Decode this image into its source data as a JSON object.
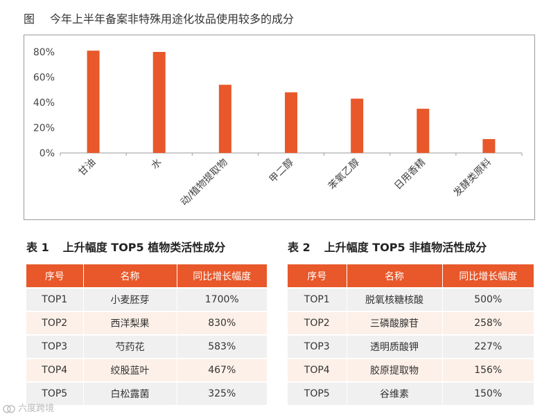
{
  "figure": {
    "label": "图",
    "title": "今年上半年备案非特殊用途化妆品使用较多的成分"
  },
  "chart_data": {
    "type": "bar",
    "title": "今年上半年备案非特殊用途化妆品使用较多的成分",
    "categories": [
      "甘油",
      "水",
      "动/植物提取物",
      "甲二醇",
      "苯氧乙醇",
      "日用香精",
      "发酵类原料"
    ],
    "values": [
      81,
      80,
      54,
      48,
      43,
      35,
      11
    ],
    "ylim": [
      0,
      80
    ],
    "yticks": [
      "0%",
      "20%",
      "40%",
      "60%",
      "80%"
    ],
    "ytick_values": [
      0,
      20,
      40,
      60,
      80
    ],
    "xlabel": "",
    "ylabel": "",
    "grid": false,
    "bar_color": "#e8582a"
  },
  "table1": {
    "number": "表 1",
    "title": "上升幅度 TOP5 植物类活性成分",
    "headers": [
      "序号",
      "名称",
      "同比增长幅度"
    ],
    "rows": [
      [
        "TOP1",
        "小麦胚芽",
        "1700%"
      ],
      [
        "TOP2",
        "西洋梨果",
        "830%"
      ],
      [
        "TOP3",
        "芍药花",
        "583%"
      ],
      [
        "TOP4",
        "绞股蓝叶",
        "467%"
      ],
      [
        "TOP5",
        "白松露菌",
        "325%"
      ]
    ]
  },
  "table2": {
    "number": "表 2",
    "title": "上升幅度 TOP5 非植物活性成分",
    "headers": [
      "序号",
      "名称",
      "同比增长幅度"
    ],
    "rows": [
      [
        "TOP1",
        "脱氧核糖核酸",
        "500%"
      ],
      [
        "TOP2",
        "三磷酸腺苷",
        "258%"
      ],
      [
        "TOP3",
        "透明质酸钾",
        "227%"
      ],
      [
        "TOP4",
        "胶原提取物",
        "156%"
      ],
      [
        "TOP5",
        "谷维素",
        "150%"
      ]
    ]
  },
  "watermark": {
    "text": "六度跨境",
    "color": "#b8b8b8"
  },
  "colors": {
    "accent": "#e8582a",
    "row_gray": "#f0f0f0",
    "row_peach": "#fdf0e8"
  }
}
